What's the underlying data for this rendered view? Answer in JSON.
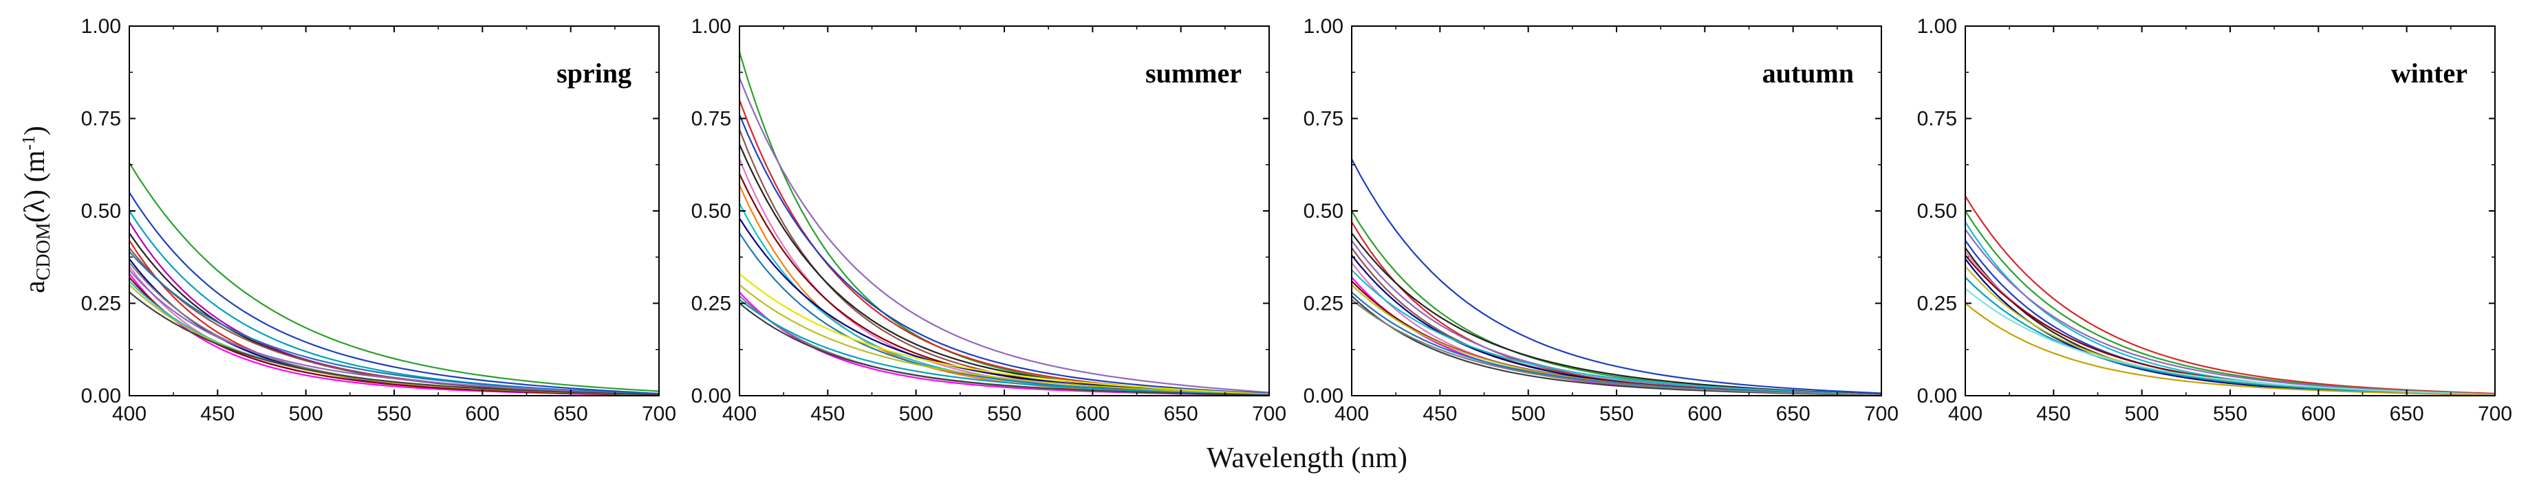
{
  "chart_data": {
    "type": "line",
    "xlabel": "Wavelength (nm)",
    "ylabel": {
      "main": "a",
      "sub": "CDOM",
      "rest": "(λ) (m",
      "sup": "-1",
      "close": ")"
    },
    "xlim": [
      400,
      700
    ],
    "ylim": [
      0,
      1
    ],
    "xticks": [
      "400",
      "450",
      "500",
      "550",
      "600",
      "650",
      "700"
    ],
    "yticks": [
      "0.00",
      "0.25",
      "0.50",
      "0.75",
      "1.00"
    ],
    "panels": [
      {
        "label": "spring",
        "series": [
          {
            "color": "#2ca02c",
            "a400": 0.63,
            "s": 0.013,
            "b": 0.03
          },
          {
            "color": "#1f3fbf",
            "a400": 0.55,
            "s": 0.015,
            "b": 0.05
          },
          {
            "color": "#00a0c0",
            "a400": 0.5,
            "s": 0.016,
            "b": 0.04
          },
          {
            "color": "#b000b0",
            "a400": 0.47,
            "s": 0.018,
            "b": 0.04
          },
          {
            "color": "#222222",
            "a400": 0.44,
            "s": 0.017,
            "b": 0.03
          },
          {
            "color": "#d62728",
            "a400": 0.42,
            "s": 0.019,
            "b": 0.02
          },
          {
            "color": "#8c564b",
            "a400": 0.4,
            "s": 0.016,
            "b": 0.03
          },
          {
            "color": "#1f77b4",
            "a400": 0.39,
            "s": 0.015,
            "b": 0.04
          },
          {
            "color": "#000080",
            "a400": 0.37,
            "s": 0.018,
            "b": 0.02
          },
          {
            "color": "#7f7f7f",
            "a400": 0.36,
            "s": 0.017,
            "b": 0.02
          },
          {
            "color": "#e377c2",
            "a400": 0.35,
            "s": 0.02,
            "b": 0.03
          },
          {
            "color": "#9467bd",
            "a400": 0.34,
            "s": 0.019,
            "b": 0.06
          },
          {
            "color": "#ff00ff",
            "a400": 0.33,
            "s": 0.02,
            "b": 0.02
          },
          {
            "color": "#800000",
            "a400": 0.32,
            "s": 0.018,
            "b": 0.02
          },
          {
            "color": "#17becf",
            "a400": 0.31,
            "s": 0.017,
            "b": 0.03
          },
          {
            "color": "#bcbd22",
            "a400": 0.3,
            "s": 0.016,
            "b": 0.02
          },
          {
            "color": "#404040",
            "a400": 0.28,
            "s": 0.015,
            "b": 0.02
          }
        ]
      },
      {
        "label": "summer",
        "series": [
          {
            "color": "#2ca02c",
            "a400": 0.93,
            "s": 0.018,
            "b": 0.02
          },
          {
            "color": "#9467bd",
            "a400": 0.86,
            "s": 0.015,
            "b": 0.06
          },
          {
            "color": "#d62728",
            "a400": 0.8,
            "s": 0.017,
            "b": 0.03
          },
          {
            "color": "#1f3fbf",
            "a400": 0.76,
            "s": 0.016,
            "b": 0.04
          },
          {
            "color": "#8c564b",
            "a400": 0.72,
            "s": 0.018,
            "b": 0.02
          },
          {
            "color": "#222222",
            "a400": 0.68,
            "s": 0.017,
            "b": 0.03
          },
          {
            "color": "#e377c2",
            "a400": 0.64,
            "s": 0.019,
            "b": 0.02
          },
          {
            "color": "#800000",
            "a400": 0.6,
            "s": 0.018,
            "b": 0.03
          },
          {
            "color": "#ff7f0e",
            "a400": 0.57,
            "s": 0.02,
            "b": 0.02
          },
          {
            "color": "#17becf",
            "a400": 0.52,
            "s": 0.019,
            "b": 0.03
          },
          {
            "color": "#000080",
            "a400": 0.48,
            "s": 0.017,
            "b": 0.04
          },
          {
            "color": "#1f77b4",
            "a400": 0.44,
            "s": 0.018,
            "b": 0.03
          },
          {
            "color": "#e6e600",
            "a400": 0.33,
            "s": 0.014,
            "b": 0.05
          },
          {
            "color": "#bcbd22",
            "a400": 0.3,
            "s": 0.015,
            "b": 0.04
          },
          {
            "color": "#ff00ff",
            "a400": 0.28,
            "s": 0.02,
            "b": 0.02
          },
          {
            "color": "#7f7f7f",
            "a400": 0.27,
            "s": 0.018,
            "b": 0.02
          },
          {
            "color": "#00a0c0",
            "a400": 0.26,
            "s": 0.016,
            "b": 0.03
          },
          {
            "color": "#404040",
            "a400": 0.25,
            "s": 0.017,
            "b": 0.02
          }
        ]
      },
      {
        "label": "autumn",
        "series": [
          {
            "color": "#1f3fbf",
            "a400": 0.64,
            "s": 0.015,
            "b": 0.03
          },
          {
            "color": "#2ca02c",
            "a400": 0.5,
            "s": 0.017,
            "b": 0.03
          },
          {
            "color": "#d62728",
            "a400": 0.47,
            "s": 0.018,
            "b": 0.02
          },
          {
            "color": "#222222",
            "a400": 0.44,
            "s": 0.016,
            "b": 0.04
          },
          {
            "color": "#9467bd",
            "a400": 0.42,
            "s": 0.017,
            "b": 0.03
          },
          {
            "color": "#8c564b",
            "a400": 0.4,
            "s": 0.018,
            "b": 0.03
          },
          {
            "color": "#000080",
            "a400": 0.38,
            "s": 0.017,
            "b": 0.02
          },
          {
            "color": "#e377c2",
            "a400": 0.36,
            "s": 0.019,
            "b": 0.03
          },
          {
            "color": "#17becf",
            "a400": 0.34,
            "s": 0.016,
            "b": 0.04
          },
          {
            "color": "#ff00ff",
            "a400": 0.32,
            "s": 0.018,
            "b": 0.02
          },
          {
            "color": "#800000",
            "a400": 0.31,
            "s": 0.017,
            "b": 0.03
          },
          {
            "color": "#bcbd22",
            "a400": 0.3,
            "s": 0.016,
            "b": 0.02
          },
          {
            "color": "#1f77b4",
            "a400": 0.28,
            "s": 0.017,
            "b": 0.03
          },
          {
            "color": "#404040",
            "a400": 0.27,
            "s": 0.018,
            "b": 0.02
          },
          {
            "color": "#7f7f7f",
            "a400": 0.26,
            "s": 0.016,
            "b": 0.02
          }
        ]
      },
      {
        "label": "winter",
        "series": [
          {
            "color": "#d62728",
            "a400": 0.54,
            "s": 0.015,
            "b": 0.02
          },
          {
            "color": "#2ca02c",
            "a400": 0.5,
            "s": 0.016,
            "b": 0.03
          },
          {
            "color": "#17becf",
            "a400": 0.47,
            "s": 0.017,
            "b": 0.02
          },
          {
            "color": "#9467bd",
            "a400": 0.45,
            "s": 0.016,
            "b": 0.03
          },
          {
            "color": "#1f3fbf",
            "a400": 0.42,
            "s": 0.017,
            "b": 0.02
          },
          {
            "color": "#222222",
            "a400": 0.4,
            "s": 0.018,
            "b": 0.02
          },
          {
            "color": "#e377c2",
            "a400": 0.39,
            "s": 0.017,
            "b": 0.03
          },
          {
            "color": "#800000",
            "a400": 0.38,
            "s": 0.016,
            "b": 0.02
          },
          {
            "color": "#000080",
            "a400": 0.37,
            "s": 0.018,
            "b": 0.02
          },
          {
            "color": "#bcbd22",
            "a400": 0.35,
            "s": 0.017,
            "b": 0.03
          },
          {
            "color": "#00a0c0",
            "a400": 0.32,
            "s": 0.016,
            "b": 0.02
          },
          {
            "color": "#7fdfdf",
            "a400": 0.29,
            "s": 0.015,
            "b": 0.03
          },
          {
            "color": "#c8a000",
            "a400": 0.25,
            "s": 0.017,
            "b": 0.02
          }
        ]
      }
    ]
  }
}
